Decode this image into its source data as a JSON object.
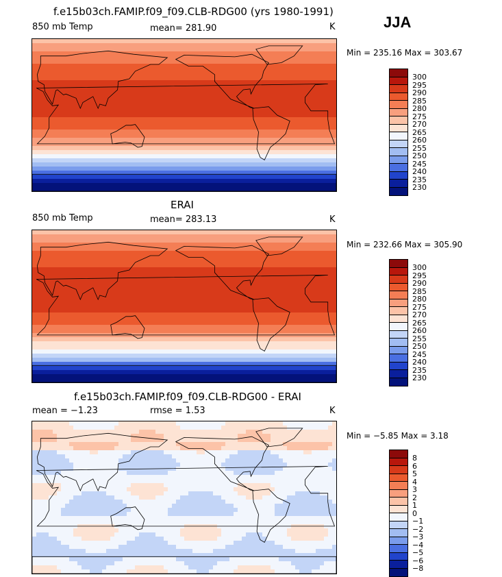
{
  "season_label": "JJA",
  "panels": [
    {
      "title": "f.e15b03ch.FAMIP.f09_f09.CLB-RDG00 (yrs 1980-1991)",
      "left_label": "850 mb Temp",
      "center_label": "mean=  281.90",
      "right_label": "K",
      "minmax": "Min = 235.16 Max = 303.67",
      "field": "model_temp",
      "colorbar": {
        "labels": [
          "300",
          "295",
          "290",
          "285",
          "280",
          "275",
          "270",
          "265",
          "260",
          "255",
          "250",
          "245",
          "240",
          "235",
          "230"
        ],
        "colors": [
          "#8c0a0a",
          "#b8170c",
          "#d83a1a",
          "#eb5a2e",
          "#f47e55",
          "#f89f7e",
          "#fcc3a8",
          "#fde3d4",
          "#f2f6fd",
          "#c3d5f7",
          "#a2bdf2",
          "#7a9cec",
          "#4a6fe2",
          "#2144cc",
          "#0a1f9c",
          "#03127a"
        ]
      }
    },
    {
      "title": "ERAI",
      "left_label": "850 mb Temp",
      "center_label": "mean=  283.13",
      "right_label": "K",
      "minmax": "Min = 232.66 Max = 305.90",
      "field": "obs_temp",
      "colorbar": {
        "labels": [
          "300",
          "295",
          "290",
          "285",
          "280",
          "275",
          "270",
          "265",
          "260",
          "255",
          "250",
          "245",
          "240",
          "235",
          "230"
        ],
        "colors": [
          "#8c0a0a",
          "#b8170c",
          "#d83a1a",
          "#eb5a2e",
          "#f47e55",
          "#f89f7e",
          "#fcc3a8",
          "#fde3d4",
          "#f2f6fd",
          "#c3d5f7",
          "#a2bdf2",
          "#7a9cec",
          "#4a6fe2",
          "#2144cc",
          "#0a1f9c",
          "#03127a"
        ]
      }
    },
    {
      "title": "f.e15b03ch.FAMIP.f09_f09.CLB-RDG00 - ERAI",
      "left_label": "mean =   −1.23",
      "center_label": "rmse =    1.53",
      "right_label": "K",
      "minmax": "Min =   −5.85 Max =    3.18",
      "field": "difference",
      "colorbar": {
        "labels": [
          "8",
          "6",
          "5",
          "4",
          "3",
          "2",
          "1",
          "0",
          "−1",
          "−2",
          "−3",
          "−4",
          "−5",
          "−6",
          "−8"
        ],
        "colors": [
          "#8c0a0a",
          "#b8170c",
          "#d83a1a",
          "#eb5a2e",
          "#f47e55",
          "#f89f7e",
          "#fcc3a8",
          "#fde3d4",
          "#f2f6fd",
          "#c3d5f7",
          "#a2bdf2",
          "#7a9cec",
          "#4a6fe2",
          "#2144cc",
          "#0a1f9c",
          "#03127a"
        ]
      }
    }
  ]
}
